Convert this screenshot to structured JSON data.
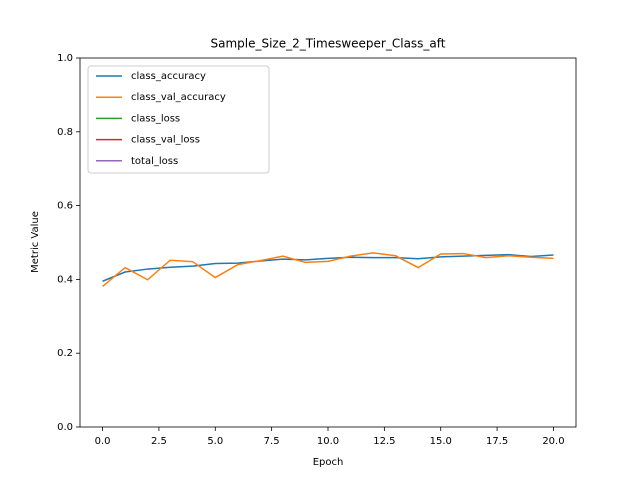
{
  "chart_data": {
    "type": "line",
    "title": "Sample_Size_2_Timesweeper_Class_aft",
    "xlabel": "Epoch",
    "ylabel": "Metric Value",
    "x": [
      0,
      1,
      2,
      3,
      4,
      5,
      6,
      7,
      8,
      9,
      10,
      11,
      12,
      13,
      14,
      15,
      16,
      17,
      18,
      19,
      20
    ],
    "series": [
      {
        "name": "class_accuracy",
        "color": "#1f77b4",
        "values": [
          0.395,
          0.42,
          0.428,
          0.433,
          0.436,
          0.443,
          0.444,
          0.45,
          0.455,
          0.453,
          0.457,
          0.46,
          0.459,
          0.459,
          0.456,
          0.461,
          0.463,
          0.465,
          0.467,
          0.462,
          0.466
        ]
      },
      {
        "name": "class_val_accuracy",
        "color": "#ff7f0e",
        "values": [
          0.381,
          0.432,
          0.399,
          0.452,
          0.448,
          0.405,
          0.44,
          0.451,
          0.463,
          0.446,
          0.449,
          0.463,
          0.472,
          0.464,
          0.432,
          0.469,
          0.47,
          0.459,
          0.464,
          0.46,
          0.457
        ]
      },
      {
        "name": "class_loss",
        "color": "#2ca02c",
        "values": [
          null,
          null,
          null,
          null,
          null,
          null,
          null,
          null,
          null,
          null,
          null,
          null,
          null,
          null,
          null,
          null,
          null,
          null,
          null,
          null,
          null
        ]
      },
      {
        "name": "class_val_loss",
        "color": "#d62728",
        "values": [
          null,
          null,
          null,
          null,
          null,
          null,
          null,
          null,
          null,
          null,
          null,
          null,
          null,
          null,
          null,
          null,
          null,
          null,
          null,
          null,
          null
        ]
      },
      {
        "name": "total_loss",
        "color": "#9467bd",
        "values": [
          null,
          null,
          null,
          null,
          null,
          null,
          null,
          null,
          null,
          null,
          null,
          null,
          null,
          null,
          null,
          null,
          null,
          null,
          null,
          null,
          null
        ]
      }
    ],
    "xlim": [
      -1,
      21
    ],
    "xticks": [
      {
        "value": 0,
        "label": "0.0"
      },
      2.5,
      {
        "value": 5,
        "label": "5.0"
      },
      7.5,
      {
        "value": 10,
        "label": "10.0"
      },
      12.5,
      {
        "value": 15,
        "label": "15.0"
      },
      17.5,
      {
        "value": 20,
        "label": "20.0"
      }
    ],
    "ylim": [
      0,
      1
    ],
    "yticks": [
      {
        "value": 0,
        "label": "0.0"
      },
      0.2,
      0.4,
      0.6,
      0.8,
      {
        "value": 1,
        "label": "1.0"
      }
    ],
    "grid": false,
    "legend": "upper left"
  }
}
